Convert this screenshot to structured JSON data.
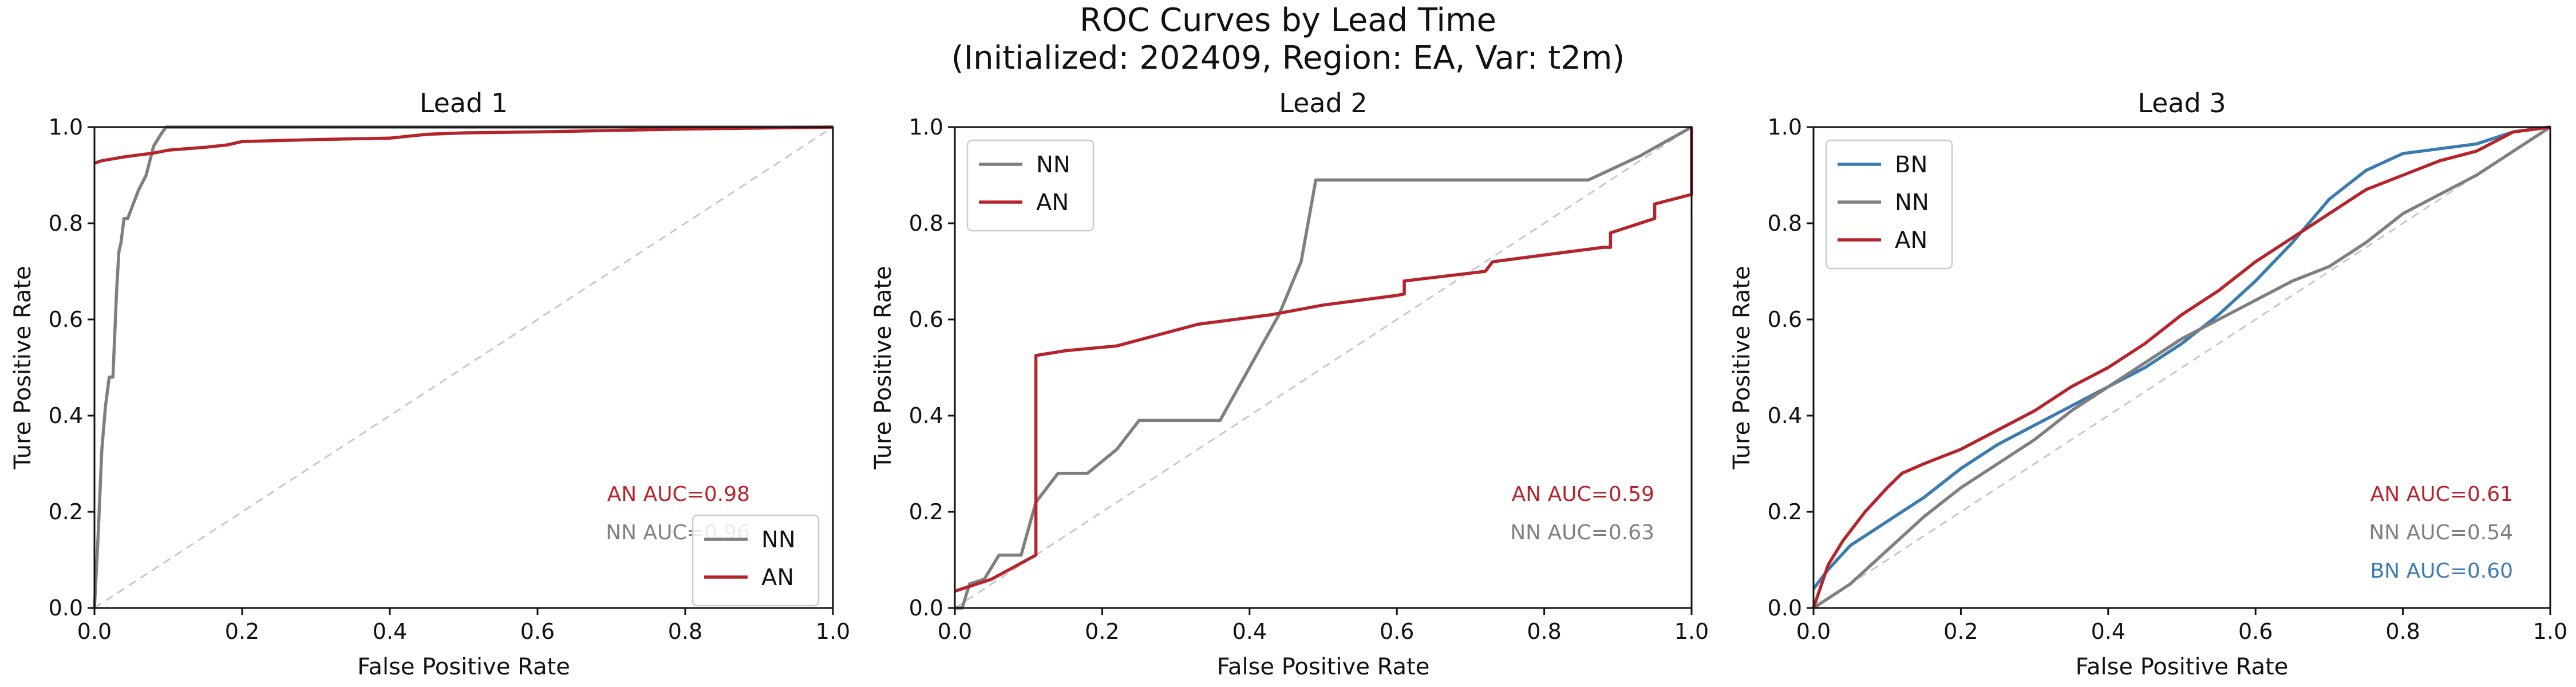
{
  "figure": {
    "title_line1": "ROC Curves by Lead Time",
    "title_line2": "(Initialized: 202409, Region: EA, Var: t2m)"
  },
  "colors": {
    "BN": "#3a7bb0",
    "NN": "#7f7f7f",
    "AN": "#b5242b",
    "diagonal": "#c8c8c8"
  },
  "chart_data": [
    {
      "type": "line",
      "title": "Lead 1",
      "xlabel": "False Positive Rate",
      "ylabel": "Ture Positive Rate",
      "xlim": [
        0,
        1
      ],
      "ylim": [
        0,
        1
      ],
      "xticks": [
        "0.0",
        "0.2",
        "0.4",
        "0.6",
        "0.8",
        "1.0"
      ],
      "yticks": [
        "0.0",
        "0.2",
        "0.4",
        "0.6",
        "0.8",
        "1.0"
      ],
      "grid": false,
      "legend": "lower-right",
      "diagonal": true,
      "series": [
        {
          "name": "NN",
          "color": "#7f7f7f",
          "x": [
            0,
            0.005,
            0.01,
            0.015,
            0.02,
            0.025,
            0.03,
            0.033,
            0.036,
            0.04,
            0.045,
            0.05,
            0.055,
            0.06,
            0.07,
            0.075,
            0.08,
            0.09,
            0.097,
            1.0
          ],
          "y": [
            0,
            0.15,
            0.33,
            0.42,
            0.48,
            0.48,
            0.66,
            0.74,
            0.76,
            0.81,
            0.81,
            0.83,
            0.85,
            0.87,
            0.9,
            0.93,
            0.96,
            0.985,
            1.0,
            1.0
          ]
        },
        {
          "name": "AN",
          "color": "#b5242b",
          "x": [
            0,
            0.01,
            0.04,
            0.06,
            0.08,
            0.1,
            0.15,
            0.18,
            0.2,
            0.3,
            0.4,
            0.45,
            0.5,
            0.6,
            0.7,
            0.8,
            0.9,
            1.0
          ],
          "y": [
            0.925,
            0.93,
            0.938,
            0.942,
            0.946,
            0.952,
            0.958,
            0.963,
            0.97,
            0.974,
            0.977,
            0.985,
            0.988,
            0.99,
            0.993,
            0.996,
            0.998,
            1.0
          ]
        }
      ],
      "annotations": [
        {
          "text": "AN AUC=0.98",
          "series": "AN"
        },
        {
          "text": "NN AUC=0.96",
          "series": "NN"
        }
      ]
    },
    {
      "type": "line",
      "title": "Lead 2",
      "xlabel": "False Positive Rate",
      "ylabel": "Ture Positive Rate",
      "xlim": [
        0,
        1
      ],
      "ylim": [
        0,
        1
      ],
      "xticks": [
        "0.0",
        "0.2",
        "0.4",
        "0.6",
        "0.8",
        "1.0"
      ],
      "yticks": [
        "0.0",
        "0.2",
        "0.4",
        "0.6",
        "0.8",
        "1.0"
      ],
      "grid": false,
      "legend": "upper-left",
      "diagonal": true,
      "series": [
        {
          "name": "NN",
          "color": "#7f7f7f",
          "x": [
            0,
            0.01,
            0.02,
            0.04,
            0.06,
            0.09,
            0.11,
            0.14,
            0.18,
            0.22,
            0.25,
            0.36,
            0.4,
            0.44,
            0.47,
            0.49,
            0.86,
            0.93,
            1.0
          ],
          "y": [
            0,
            0.0,
            0.05,
            0.06,
            0.11,
            0.11,
            0.22,
            0.28,
            0.28,
            0.33,
            0.39,
            0.39,
            0.5,
            0.61,
            0.72,
            0.89,
            0.89,
            0.94,
            1.0
          ]
        },
        {
          "name": "AN",
          "color": "#b5242b",
          "x": [
            0,
            0.05,
            0.11,
            0.11,
            0.15,
            0.22,
            0.33,
            0.43,
            0.5,
            0.6,
            0.61,
            0.61,
            0.72,
            0.73,
            0.83,
            0.88,
            0.89,
            0.89,
            0.95,
            0.95,
            1.0,
            1.0
          ],
          "y": [
            0.035,
            0.06,
            0.11,
            0.525,
            0.535,
            0.545,
            0.59,
            0.61,
            0.63,
            0.65,
            0.653,
            0.68,
            0.7,
            0.72,
            0.74,
            0.75,
            0.75,
            0.78,
            0.81,
            0.84,
            0.86,
            1.0
          ]
        }
      ],
      "annotations": [
        {
          "text": "AN AUC=0.59",
          "series": "AN"
        },
        {
          "text": "NN AUC=0.63",
          "series": "NN"
        }
      ]
    },
    {
      "type": "line",
      "title": "Lead 3",
      "xlabel": "False Positive Rate",
      "ylabel": "Ture Positive Rate",
      "xlim": [
        0,
        1
      ],
      "ylim": [
        0,
        1
      ],
      "xticks": [
        "0.0",
        "0.2",
        "0.4",
        "0.6",
        "0.8",
        "1.0"
      ],
      "yticks": [
        "0.0",
        "0.2",
        "0.4",
        "0.6",
        "0.8",
        "1.0"
      ],
      "grid": false,
      "legend": "upper-left",
      "diagonal": true,
      "series": [
        {
          "name": "BN",
          "color": "#3a7bb0",
          "x": [
            0,
            0.02,
            0.05,
            0.1,
            0.15,
            0.2,
            0.25,
            0.3,
            0.35,
            0.4,
            0.45,
            0.5,
            0.55,
            0.6,
            0.65,
            0.7,
            0.75,
            0.8,
            0.85,
            0.9,
            0.95,
            1.0
          ],
          "y": [
            0.04,
            0.08,
            0.13,
            0.18,
            0.23,
            0.29,
            0.34,
            0.38,
            0.42,
            0.46,
            0.5,
            0.55,
            0.61,
            0.68,
            0.76,
            0.85,
            0.91,
            0.945,
            0.955,
            0.965,
            0.99,
            1.0
          ]
        },
        {
          "name": "NN",
          "color": "#7f7f7f",
          "x": [
            0,
            0.05,
            0.1,
            0.15,
            0.2,
            0.25,
            0.3,
            0.35,
            0.4,
            0.45,
            0.5,
            0.55,
            0.6,
            0.65,
            0.7,
            0.75,
            0.8,
            0.85,
            0.9,
            0.95,
            1.0
          ],
          "y": [
            0,
            0.05,
            0.12,
            0.19,
            0.25,
            0.3,
            0.35,
            0.41,
            0.46,
            0.51,
            0.56,
            0.6,
            0.64,
            0.68,
            0.71,
            0.76,
            0.82,
            0.86,
            0.9,
            0.95,
            1.0
          ]
        },
        {
          "name": "AN",
          "color": "#b5242b",
          "x": [
            0,
            0.02,
            0.04,
            0.07,
            0.1,
            0.12,
            0.15,
            0.2,
            0.25,
            0.3,
            0.35,
            0.4,
            0.45,
            0.5,
            0.55,
            0.6,
            0.65,
            0.7,
            0.75,
            0.8,
            0.85,
            0.9,
            0.95,
            1.0
          ],
          "y": [
            0,
            0.09,
            0.14,
            0.2,
            0.25,
            0.28,
            0.3,
            0.33,
            0.37,
            0.41,
            0.46,
            0.5,
            0.55,
            0.61,
            0.66,
            0.72,
            0.77,
            0.82,
            0.87,
            0.9,
            0.93,
            0.95,
            0.99,
            1.0
          ]
        }
      ],
      "annotations": [
        {
          "text": "AN AUC=0.61",
          "series": "AN"
        },
        {
          "text": "NN AUC=0.54",
          "series": "NN"
        },
        {
          "text": "BN AUC=0.60",
          "series": "BN"
        }
      ]
    }
  ]
}
